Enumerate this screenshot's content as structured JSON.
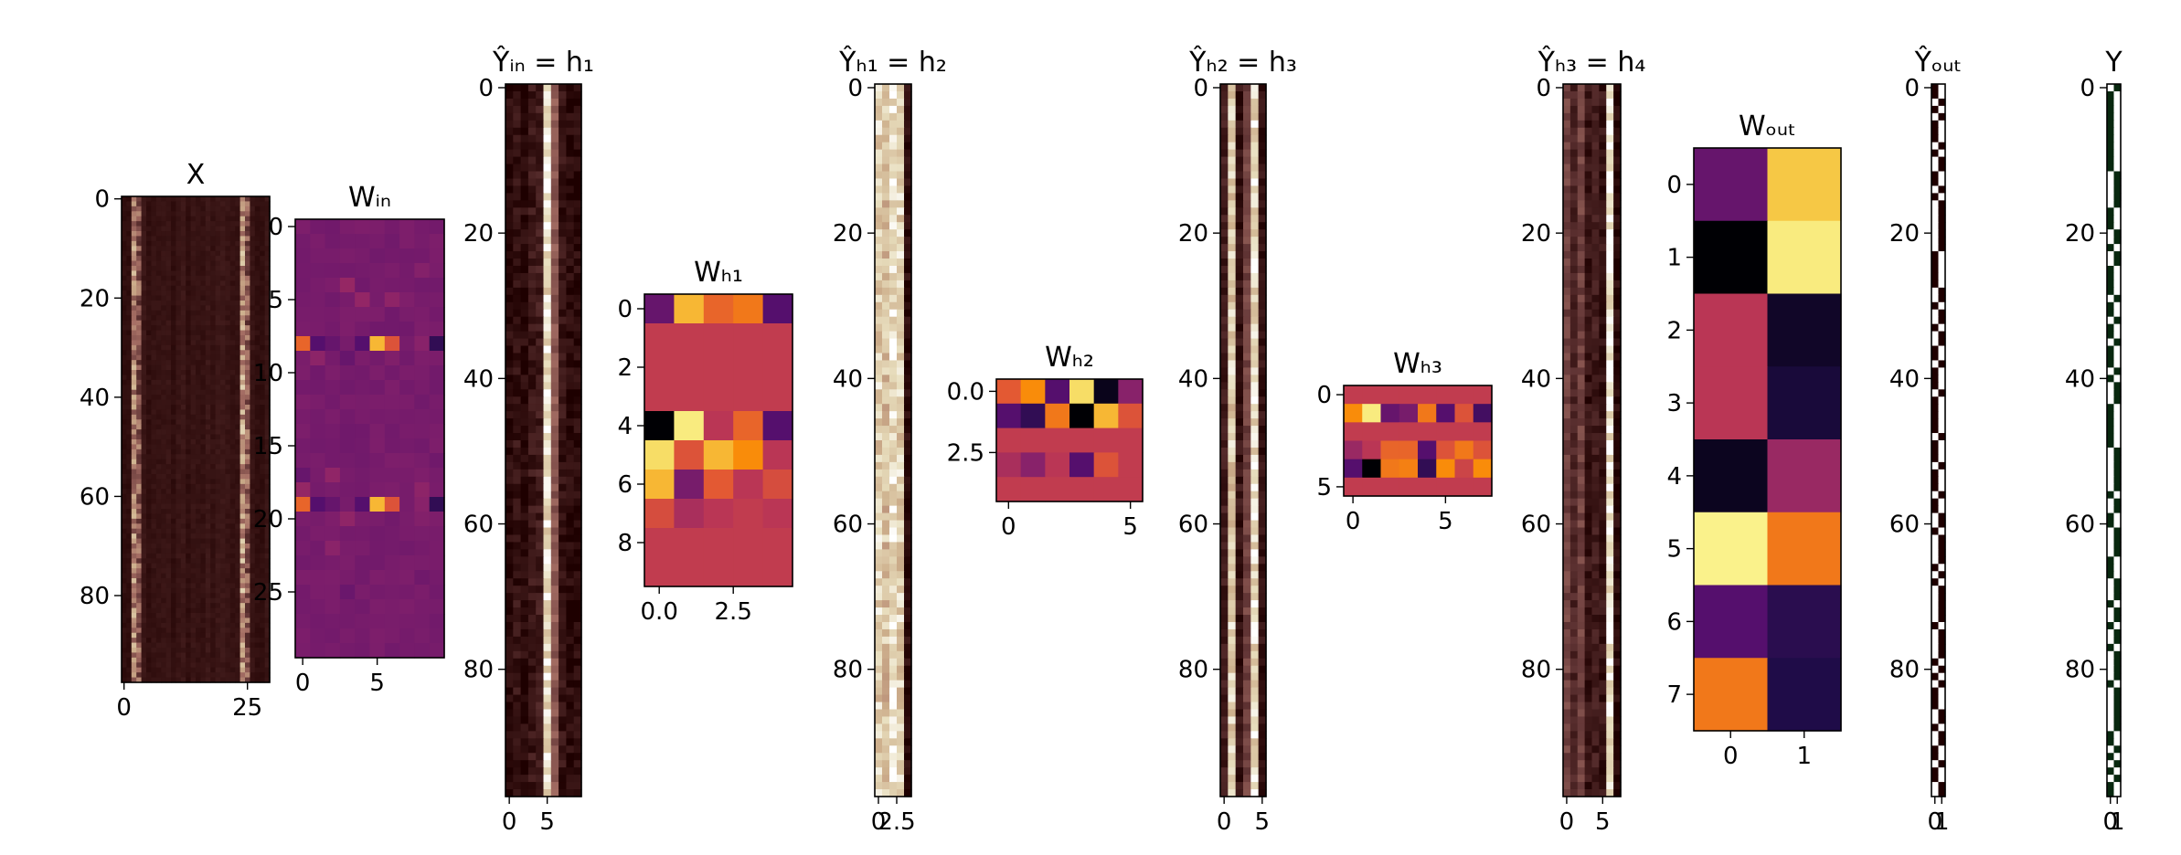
{
  "chart_data": [
    {
      "type": "heatmap",
      "name": "X",
      "title": "X",
      "colormap": "pink",
      "rows": 98,
      "cols": 30,
      "yticks": [
        "0",
        "20",
        "40",
        "60",
        "80"
      ],
      "ytick_values": [
        0,
        20,
        40,
        60,
        80
      ],
      "xticks": [
        "0",
        "25"
      ],
      "xtick_values": [
        0,
        25
      ]
    },
    {
      "type": "heatmap",
      "name": "W_in",
      "title": "Wᵢₙ",
      "colormap": "inferno",
      "rows": 30,
      "cols": 10,
      "yticks": [
        "0",
        "5",
        "10",
        "15",
        "20",
        "25"
      ],
      "ytick_values": [
        0,
        5,
        10,
        15,
        20,
        25
      ],
      "xticks": [
        "0",
        "5"
      ],
      "xtick_values": [
        0,
        5
      ]
    },
    {
      "type": "heatmap",
      "name": "Y_in",
      "title": "Ŷᵢₙ = h₁",
      "colormap": "pink",
      "rows": 98,
      "cols": 10,
      "yticks": [
        "0",
        "20",
        "40",
        "60",
        "80"
      ],
      "ytick_values": [
        0,
        20,
        40,
        60,
        80
      ],
      "xticks": [
        "0",
        "5"
      ],
      "xtick_values": [
        0,
        5
      ]
    },
    {
      "type": "heatmap",
      "name": "W_h1",
      "title": "Wₕ₁",
      "colormap": "inferno",
      "rows": 10,
      "cols": 5,
      "yticks": [
        "0",
        "2",
        "4",
        "6",
        "8"
      ],
      "ytick_values": [
        0,
        2,
        4,
        6,
        8
      ],
      "xticks": [
        "0.0",
        "2.5"
      ],
      "xtick_values": [
        0,
        2.5
      ]
    },
    {
      "type": "heatmap",
      "name": "Y_h1",
      "title": "Ŷₕ₁ = h₂",
      "colormap": "pink",
      "rows": 98,
      "cols": 5,
      "yticks": [
        "0",
        "20",
        "40",
        "60",
        "80"
      ],
      "ytick_values": [
        0,
        20,
        40,
        60,
        80
      ],
      "xticks": [
        "0",
        "2.5"
      ],
      "xtick_values": [
        0,
        2.5
      ]
    },
    {
      "type": "heatmap",
      "name": "W_h2",
      "title": "Wₕ₂",
      "colormap": "inferno",
      "rows": 5,
      "cols": 6,
      "yticks": [
        "0.0",
        "2.5"
      ],
      "ytick_values": [
        0,
        2.5
      ],
      "xticks": [
        "0",
        "5"
      ],
      "xtick_values": [
        0,
        5
      ]
    },
    {
      "type": "heatmap",
      "name": "Y_h2",
      "title": "Ŷₕ₂ = h₃",
      "colormap": "pink",
      "rows": 98,
      "cols": 6,
      "yticks": [
        "0",
        "20",
        "40",
        "60",
        "80"
      ],
      "ytick_values": [
        0,
        20,
        40,
        60,
        80
      ],
      "xticks": [
        "0",
        "5"
      ],
      "xtick_values": [
        0,
        5
      ]
    },
    {
      "type": "heatmap",
      "name": "W_h3",
      "title": "Wₕ₃",
      "colormap": "inferno",
      "rows": 6,
      "cols": 8,
      "yticks": [
        "0",
        "5"
      ],
      "ytick_values": [
        0,
        5
      ],
      "xticks": [
        "0",
        "5"
      ],
      "xtick_values": [
        0,
        5
      ]
    },
    {
      "type": "heatmap",
      "name": "Y_h3",
      "title": "Ŷₕ₃ = h₄",
      "colormap": "pink",
      "rows": 98,
      "cols": 8,
      "yticks": [
        "0",
        "20",
        "40",
        "60",
        "80"
      ],
      "ytick_values": [
        0,
        20,
        40,
        60,
        80
      ],
      "xticks": [
        "0",
        "5"
      ],
      "xtick_values": [
        0,
        5
      ]
    },
    {
      "type": "heatmap",
      "name": "W_out",
      "title": "Wₒᵤₜ",
      "colormap": "inferno",
      "rows": 8,
      "cols": 2,
      "yticks": [
        "0",
        "1",
        "2",
        "3",
        "4",
        "5",
        "6",
        "7"
      ],
      "ytick_values": [
        0,
        1,
        2,
        3,
        4,
        5,
        6,
        7
      ],
      "xticks": [
        "0",
        "1"
      ],
      "xtick_values": [
        0,
        1
      ],
      "values": [
        [
          0.35,
          0.92
        ],
        [
          0.0,
          0.97
        ],
        [
          0.6,
          0.08
        ],
        [
          0.6,
          0.12
        ],
        [
          0.06,
          0.5
        ],
        [
          0.98,
          0.8
        ],
        [
          0.3,
          0.18
        ],
        [
          0.8,
          0.15
        ]
      ]
    },
    {
      "type": "heatmap",
      "name": "Y_out",
      "title": "Ŷₒᵤₜ",
      "colormap": "pink",
      "rows": 98,
      "cols": 2,
      "yticks": [
        "0",
        "20",
        "40",
        "60",
        "80"
      ],
      "ytick_values": [
        0,
        20,
        40,
        60,
        80
      ],
      "xticks": [
        "0",
        "1"
      ],
      "xtick_values": [
        0,
        1
      ]
    },
    {
      "type": "heatmap",
      "name": "Y",
      "title": "Y",
      "colormap": "greens",
      "rows": 98,
      "cols": 2,
      "yticks": [
        "0",
        "20",
        "40",
        "60",
        "80"
      ],
      "ytick_values": [
        0,
        20,
        40,
        60,
        80
      ],
      "xticks": [
        "0",
        "1"
      ],
      "xtick_values": [
        0,
        1
      ]
    }
  ]
}
